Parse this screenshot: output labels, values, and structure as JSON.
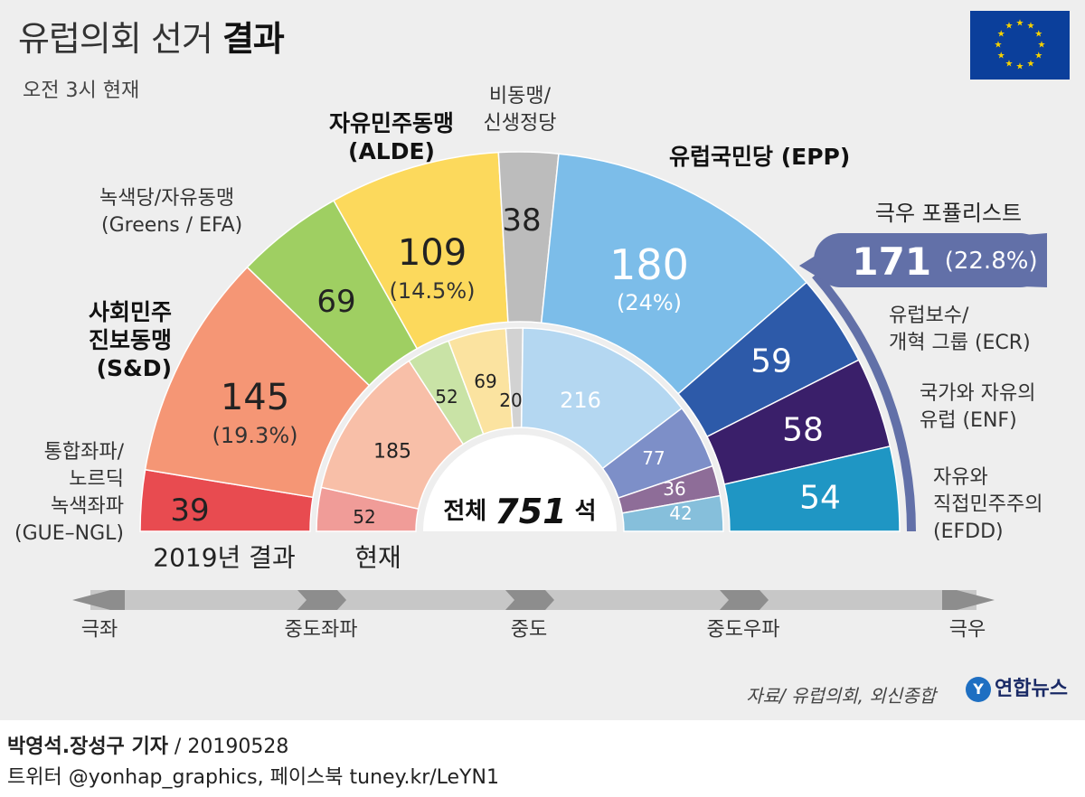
{
  "header": {
    "title_light": "유럽의회 선거",
    "title_bold": "결과",
    "subtitle": "오전 3시 현재"
  },
  "flag": {
    "name": "eu-flag-icon",
    "field_color": "#0b3f9b",
    "star_color": "#f5d100"
  },
  "chart_data": {
    "type": "parliament-semicircle",
    "total_label_prefix": "전체",
    "total": "751",
    "total_label_suffix": "석",
    "outer_ring_caption": "2019년 결과",
    "inner_ring_caption": "현재",
    "outer": [
      {
        "key": "gue",
        "seats": 39,
        "color": "#e84b50"
      },
      {
        "key": "sd",
        "seats": 145,
        "pct": "(19.3%)",
        "color": "#f59675"
      },
      {
        "key": "greens",
        "seats": 69,
        "color": "#9fcf62"
      },
      {
        "key": "alde",
        "seats": 109,
        "pct": "(14.5%)",
        "color": "#fcd95c"
      },
      {
        "key": "ni",
        "seats": 38,
        "color": "#bcbcbc"
      },
      {
        "key": "epp",
        "seats": 180,
        "pct": "(24%)",
        "color": "#7cbde9"
      },
      {
        "key": "ecr",
        "seats": 59,
        "color": "#2d5aa9"
      },
      {
        "key": "enf",
        "seats": 58,
        "color": "#3a1f6a"
      },
      {
        "key": "efdd",
        "seats": 54,
        "color": "#1f96c4"
      }
    ],
    "inner": [
      {
        "key": "gue",
        "seats": 52,
        "color": "#f09c98"
      },
      {
        "key": "sd",
        "seats": 185,
        "color": "#f8bfa8"
      },
      {
        "key": "greens",
        "seats": 52,
        "color": "#c9e3a6"
      },
      {
        "key": "alde",
        "seats": 69,
        "color": "#fbe3a0"
      },
      {
        "key": "ni",
        "seats": 20,
        "color": "#d2d2d2"
      },
      {
        "key": "epp",
        "seats": 216,
        "color": "#b4d7f1"
      },
      {
        "key": "ecr",
        "seats": 77,
        "color": "#7d8fc8"
      },
      {
        "key": "enf",
        "seats": 36,
        "color": "#8e6d98"
      },
      {
        "key": "efdd",
        "seats": 42,
        "color": "#86bfdb"
      }
    ],
    "populist": {
      "label": "극우 포퓰리스트",
      "seats": "171",
      "pct": "(22.8%)",
      "color": "#6270a8"
    }
  },
  "labels": {
    "gue": [
      "통합좌파/",
      "노르딕",
      "녹색좌파",
      "(GUE–NGL)"
    ],
    "sd": [
      "사회민주",
      "진보동맹",
      "(S&D)"
    ],
    "greens": [
      "녹색당/자유동맹",
      "(Greens / EFA)"
    ],
    "alde": [
      "자유민주동맹",
      "(ALDE)"
    ],
    "ni": [
      "비동맹/",
      "신생정당"
    ],
    "epp": [
      "유럽국민당 (EPP)"
    ],
    "ecr": [
      "유럽보수/",
      "개혁 그룹 (ECR)"
    ],
    "enf": [
      "국가와 자유의",
      "유럽 (ENF)"
    ],
    "efdd": [
      "자유와",
      "직접민주주의",
      "(EFDD)"
    ]
  },
  "axis": {
    "ticks": [
      "극좌",
      "중도좌파",
      "중도",
      "중도우파",
      "극우"
    ]
  },
  "footer": {
    "source": "자료/ 유럽의회, 외신종합",
    "logo": "연합뉴스",
    "credit_bold": "박영석.장성구 기자",
    "credit_rest": " / 20190528",
    "credit2": "트위터 @yonhap_graphics, 페이스북 tuney.kr/LeYN1"
  }
}
